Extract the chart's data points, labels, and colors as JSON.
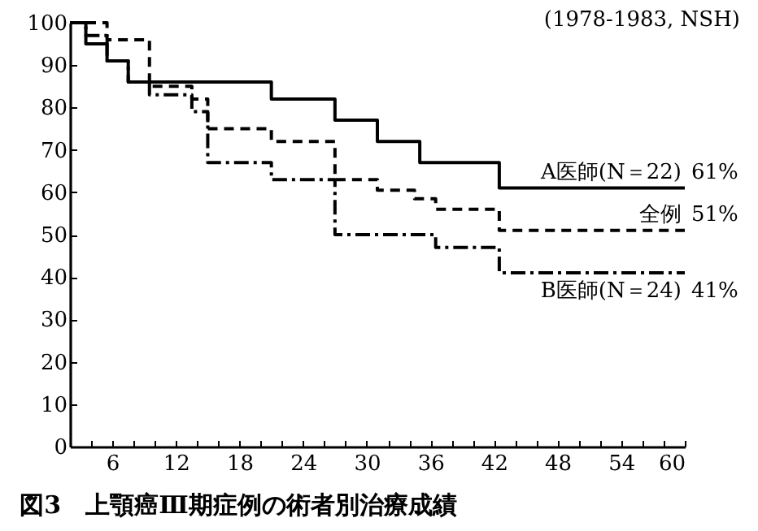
{
  "chart_data": {
    "type": "step",
    "title": "図3　上顎癌Ⅲ期症例の術者別治療成績",
    "xlim": [
      2,
      60
    ],
    "xticks": [
      {
        "value": 4,
        "label": null
      },
      6,
      {
        "value": 8,
        "label": null
      },
      {
        "value": 10,
        "label": null
      },
      12,
      {
        "value": 14,
        "label": null
      },
      {
        "value": 16,
        "label": null
      },
      18,
      {
        "value": 20,
        "label": null
      },
      {
        "value": 22,
        "label": null
      },
      24,
      {
        "value": 26,
        "label": null
      },
      {
        "value": 28,
        "label": null
      },
      30,
      {
        "value": 32,
        "label": null
      },
      {
        "value": 34,
        "label": null
      },
      36,
      {
        "value": 38,
        "label": null
      },
      {
        "value": 40,
        "label": null
      },
      42,
      {
        "value": 44,
        "label": null
      },
      {
        "value": 46,
        "label": null
      },
      48,
      {
        "value": 50,
        "label": null
      },
      {
        "value": 52,
        "label": null
      },
      54,
      {
        "value": 56,
        "label": null
      },
      {
        "value": 58,
        "label": null
      },
      60
    ],
    "ylim": [
      0,
      100
    ],
    "yticks": [
      0,
      10,
      20,
      30,
      40,
      50,
      60,
      70,
      80,
      90,
      100
    ],
    "grid": false,
    "series": [
      {
        "name": "A医師(N＝22)",
        "color": "#000000",
        "line_style": "solid",
        "x": [
          2,
          3.5,
          5.5,
          7.5,
          21,
          27,
          31,
          35,
          42.5,
          60
        ],
        "values": [
          100,
          95,
          91,
          86,
          82,
          77,
          72,
          67,
          61,
          61
        ],
        "value_labels": [
          null,
          null,
          null,
          null,
          null,
          null,
          null,
          null,
          null,
          "61%"
        ]
      },
      {
        "name": "全例",
        "color": "#000000",
        "line_style": "dashed",
        "x": [
          2,
          5.5,
          9.5,
          13.5,
          15,
          21,
          27,
          31,
          34.5,
          36.5,
          42.5,
          60
        ],
        "values": [
          100,
          96,
          85,
          82,
          75,
          72,
          63,
          60.5,
          58.5,
          56,
          51,
          51
        ],
        "value_labels": [
          null,
          null,
          null,
          null,
          null,
          null,
          null,
          null,
          null,
          null,
          null,
          "51%"
        ]
      },
      {
        "name": "B医師(N＝24)",
        "color": "#000000",
        "line_style": "dashdot",
        "x": [
          2,
          3.5,
          5.5,
          7.5,
          9.5,
          13.5,
          15,
          21,
          27,
          36.5,
          42.5,
          60
        ],
        "values": [
          100,
          97,
          91,
          86,
          83,
          79,
          67,
          63,
          50,
          47,
          41,
          41
        ],
        "value_labels": [
          null,
          null,
          null,
          null,
          null,
          null,
          null,
          null,
          null,
          null,
          null,
          "41%"
        ]
      }
    ],
    "annotations": [
      "(1978-1983, NSH)"
    ]
  }
}
